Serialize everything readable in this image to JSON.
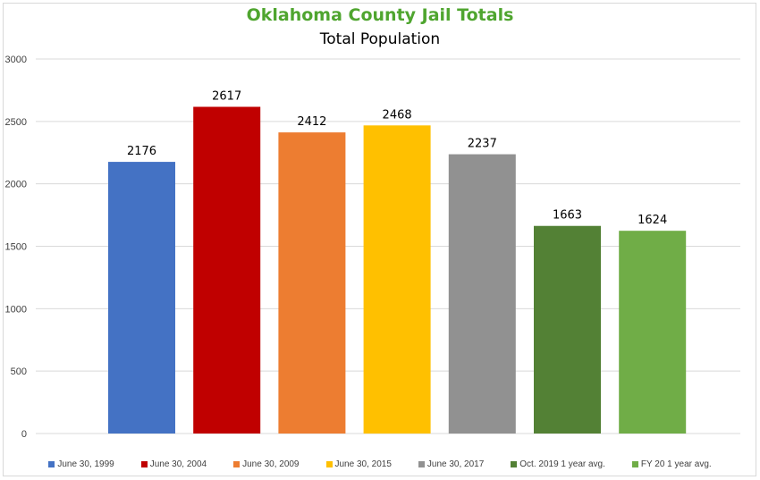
{
  "chart_data": {
    "type": "bar",
    "title": "Oklahoma County Jail Totals",
    "subtitle": "Total Population",
    "categories": [
      "June 30, 1999",
      "June 30, 2004",
      "June 30, 2009",
      "June 30, 2015",
      "June 30, 2017",
      "Oct. 2019 1 year avg.",
      "FY 20 1 year avg."
    ],
    "values": [
      2176,
      2617,
      2412,
      2468,
      2237,
      1663,
      1624
    ],
    "colors": [
      "#4472c4",
      "#c00000",
      "#ed7d31",
      "#ffc000",
      "#919191",
      "#538135",
      "#70ad47"
    ],
    "y_ticks": [
      0,
      500,
      1000,
      1500,
      2000,
      2500,
      3000
    ],
    "ylim": [
      0,
      3000
    ],
    "grid": true,
    "legend_position": "bottom",
    "show_data_labels": true
  }
}
